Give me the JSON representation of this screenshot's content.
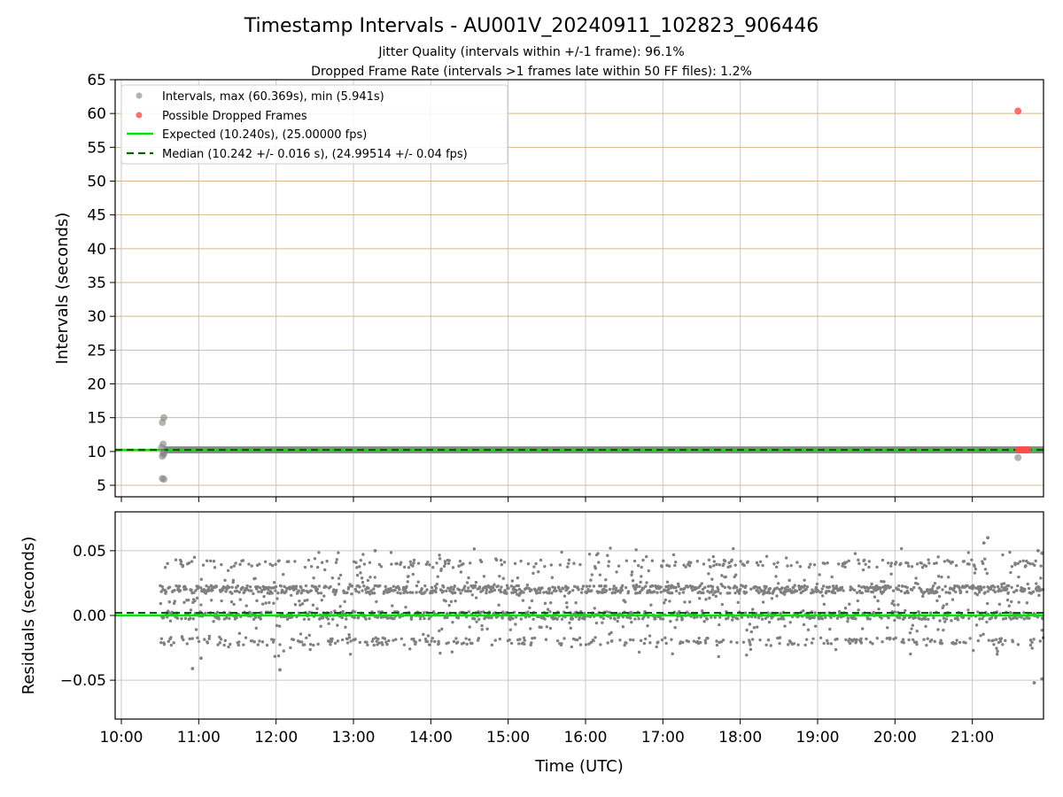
{
  "figure": {
    "title": "Timestamp Intervals - AU001V_20240911_102823_906446",
    "subtitle_1": "Jitter Quality (intervals within +/-1 frame): 96.1%",
    "subtitle_2": "Dropped Frame Rate (intervals >1 frames late within 50 FF files): 1.2%"
  },
  "colors": {
    "intervals": "#808080",
    "dropped": "#ff4d4d",
    "expected": "#00e600",
    "median": "#006400",
    "grid_h": "#d7b98a",
    "grid_v": "#c8c8c8"
  },
  "chart_data": [
    {
      "type": "scatter",
      "ylabel": "Intervals (seconds)",
      "xlabel": "",
      "xlim": [
        9.92,
        21.92
      ],
      "ylim": [
        3.3,
        65
      ],
      "xlim_labels": [
        "09:55",
        "21:55"
      ],
      "yticks": [
        5,
        10,
        15,
        20,
        25,
        30,
        35,
        40,
        45,
        50,
        55,
        60,
        65
      ],
      "ytick_labels": [
        "5",
        "10",
        "15",
        "20",
        "25",
        "30",
        "35",
        "40",
        "45",
        "50",
        "55",
        "60",
        "65"
      ],
      "grid": "on",
      "legend_position": "top-left",
      "legend": [
        {
          "label": "Intervals, max (60.369s), min (5.941s)",
          "kind": "marker-gray"
        },
        {
          "label": "Possible Dropped Frames",
          "kind": "marker-red"
        },
        {
          "label": "Expected (10.240s), (25.00000 fps)",
          "kind": "line-green"
        },
        {
          "label": "Median (10.242 +/- 0.016 s), (24.99514 +/- 0.04 fps)",
          "kind": "dashed-darkgreen"
        }
      ],
      "expected_value": 10.24,
      "median_value": 10.242,
      "interval_band": {
        "x_start": 10.55,
        "x_end": 21.92,
        "y": 10.24
      },
      "series": [
        {
          "name": "Intervals, max (60.369s), min (5.941s)",
          "points": [
            {
              "x": 10.53,
              "y": 14.3
            },
            {
              "x": 10.55,
              "y": 15.0
            },
            {
              "x": 10.54,
              "y": 11.1
            },
            {
              "x": 10.52,
              "y": 10.6
            },
            {
              "x": 10.54,
              "y": 9.8
            },
            {
              "x": 10.53,
              "y": 9.3
            },
            {
              "x": 10.55,
              "y": 9.6
            },
            {
              "x": 10.53,
              "y": 6.0
            },
            {
              "x": 10.55,
              "y": 5.9
            },
            {
              "x": 21.59,
              "y": 9.1
            }
          ]
        },
        {
          "name": "Possible Dropped Frames",
          "points": [
            {
              "x": 21.59,
              "y": 60.37
            },
            {
              "x": 21.6,
              "y": 10.25
            },
            {
              "x": 21.62,
              "y": 10.25
            },
            {
              "x": 21.64,
              "y": 10.25
            },
            {
              "x": 21.66,
              "y": 10.25
            },
            {
              "x": 21.68,
              "y": 10.25
            },
            {
              "x": 21.7,
              "y": 10.25
            },
            {
              "x": 21.72,
              "y": 10.25
            }
          ]
        }
      ]
    },
    {
      "type": "scatter",
      "ylabel": "Residuals (seconds)",
      "xlabel": "Time (UTC)",
      "xlim": [
        9.92,
        21.92
      ],
      "ylim": [
        -0.08,
        0.08
      ],
      "xticks": [
        10,
        11,
        12,
        13,
        14,
        15,
        16,
        17,
        18,
        19,
        20,
        21
      ],
      "xtick_labels": [
        "10:00",
        "11:00",
        "12:00",
        "13:00",
        "14:00",
        "15:00",
        "16:00",
        "17:00",
        "18:00",
        "19:00",
        "20:00",
        "21:00"
      ],
      "yticks": [
        -0.05,
        0.0,
        0.05
      ],
      "ytick_labels": [
        "−0.05",
        "0.00",
        "0.05"
      ],
      "grid": "on",
      "expected_value": 0.0,
      "median_value": 0.002,
      "residual_levels": [
        -0.02,
        0.0,
        0.02,
        0.04
      ],
      "residual_time_range": [
        10.5,
        21.92
      ],
      "notable_points": [
        {
          "x": 10.92,
          "y": -0.041
        },
        {
          "x": 11.03,
          "y": -0.033
        },
        {
          "x": 12.05,
          "y": -0.042
        },
        {
          "x": 13.28,
          "y": 0.05
        },
        {
          "x": 21.15,
          "y": 0.056
        },
        {
          "x": 21.2,
          "y": 0.06
        },
        {
          "x": 21.85,
          "y": 0.05
        },
        {
          "x": 21.9,
          "y": 0.048
        },
        {
          "x": 21.8,
          "y": -0.052
        },
        {
          "x": 21.9,
          "y": -0.049
        }
      ]
    }
  ]
}
